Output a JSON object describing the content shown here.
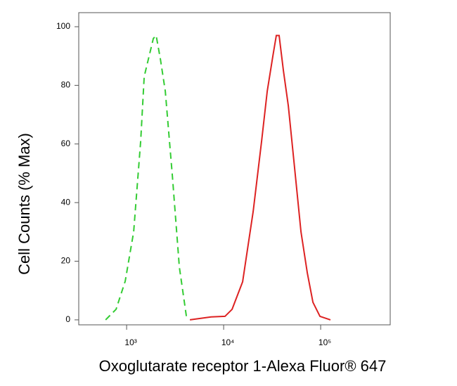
{
  "chart_data": {
    "type": "line",
    "ylabel": "Cell Counts (% Max)",
    "xlabel": "Oxoglutarate receptor 1-Alexa Fluor® 647",
    "xscale": "log",
    "xlim": [
      321,
      521000
    ],
    "xticks": [
      {
        "value": 1000,
        "label": "10³"
      },
      {
        "value": 10000,
        "label": "10⁴"
      },
      {
        "value": 100000,
        "label": "10⁵"
      }
    ],
    "ylim": [
      -1.7,
      104.8
    ],
    "yticks": [
      0,
      20,
      40,
      60,
      80,
      100
    ],
    "series": [
      {
        "color": "#33cc33",
        "dashed": true,
        "x": [
          607,
          778,
          968,
          1181,
          1396,
          1518,
          1707,
          1886,
          2015,
          2227,
          2505,
          2961,
          3494,
          4130
        ],
        "values": [
          0,
          3.6,
          13.2,
          30,
          61,
          83,
          90,
          96,
          97,
          89,
          78,
          49,
          18,
          1.2
        ]
      },
      {
        "color": "#dd2222",
        "dashed": false,
        "x": [
          4487,
          7413,
          10330,
          12210,
          15690,
          20150,
          24610,
          28120,
          32150,
          34910,
          37330,
          41300,
          46420,
          53060,
          62690,
          72810,
          83210,
          98300,
          126100
        ],
        "values": [
          0,
          1,
          1.2,
          3.6,
          13,
          37,
          61,
          78,
          90,
          97,
          97,
          85,
          73,
          54,
          30,
          16,
          6,
          1.2,
          0
        ]
      }
    ]
  }
}
